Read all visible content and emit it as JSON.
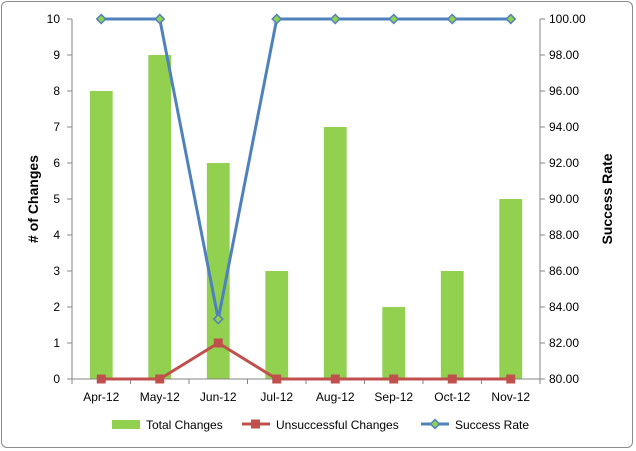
{
  "chart_data": {
    "type": "bar",
    "categories": [
      "Apr-12",
      "May-12",
      "Jun-12",
      "Jul-12",
      "Aug-12",
      "Sep-12",
      "Oct-12",
      "Nov-12"
    ],
    "series": [
      {
        "name": "Total Changes",
        "kind": "bar",
        "axis": "left",
        "values": [
          8,
          9,
          6,
          3,
          7,
          2,
          3,
          5
        ],
        "color": "#92D050"
      },
      {
        "name": "Unsuccessful Changes",
        "kind": "line",
        "axis": "left",
        "values": [
          0,
          0,
          1,
          0,
          0,
          0,
          0,
          0
        ],
        "color": "#C0504D"
      },
      {
        "name": "Success Rate",
        "kind": "line",
        "axis": "right",
        "values": [
          100,
          100,
          83.33,
          100,
          100,
          100,
          100,
          100
        ],
        "color": "#4F81BD"
      }
    ],
    "y_left": {
      "label": "# of Changes",
      "range": [
        0,
        10
      ],
      "ticks": [
        "0",
        "1",
        "2",
        "3",
        "4",
        "5",
        "6",
        "7",
        "8",
        "9",
        "10"
      ]
    },
    "y_right": {
      "label": "Success Rate",
      "range": [
        80,
        100
      ],
      "ticks": [
        "80.00",
        "82.00",
        "84.00",
        "86.00",
        "88.00",
        "90.00",
        "92.00",
        "94.00",
        "96.00",
        "98.00",
        "100.00"
      ]
    },
    "grid": false,
    "legend_position": "bottom",
    "marker_fill_success": "#92D050"
  }
}
